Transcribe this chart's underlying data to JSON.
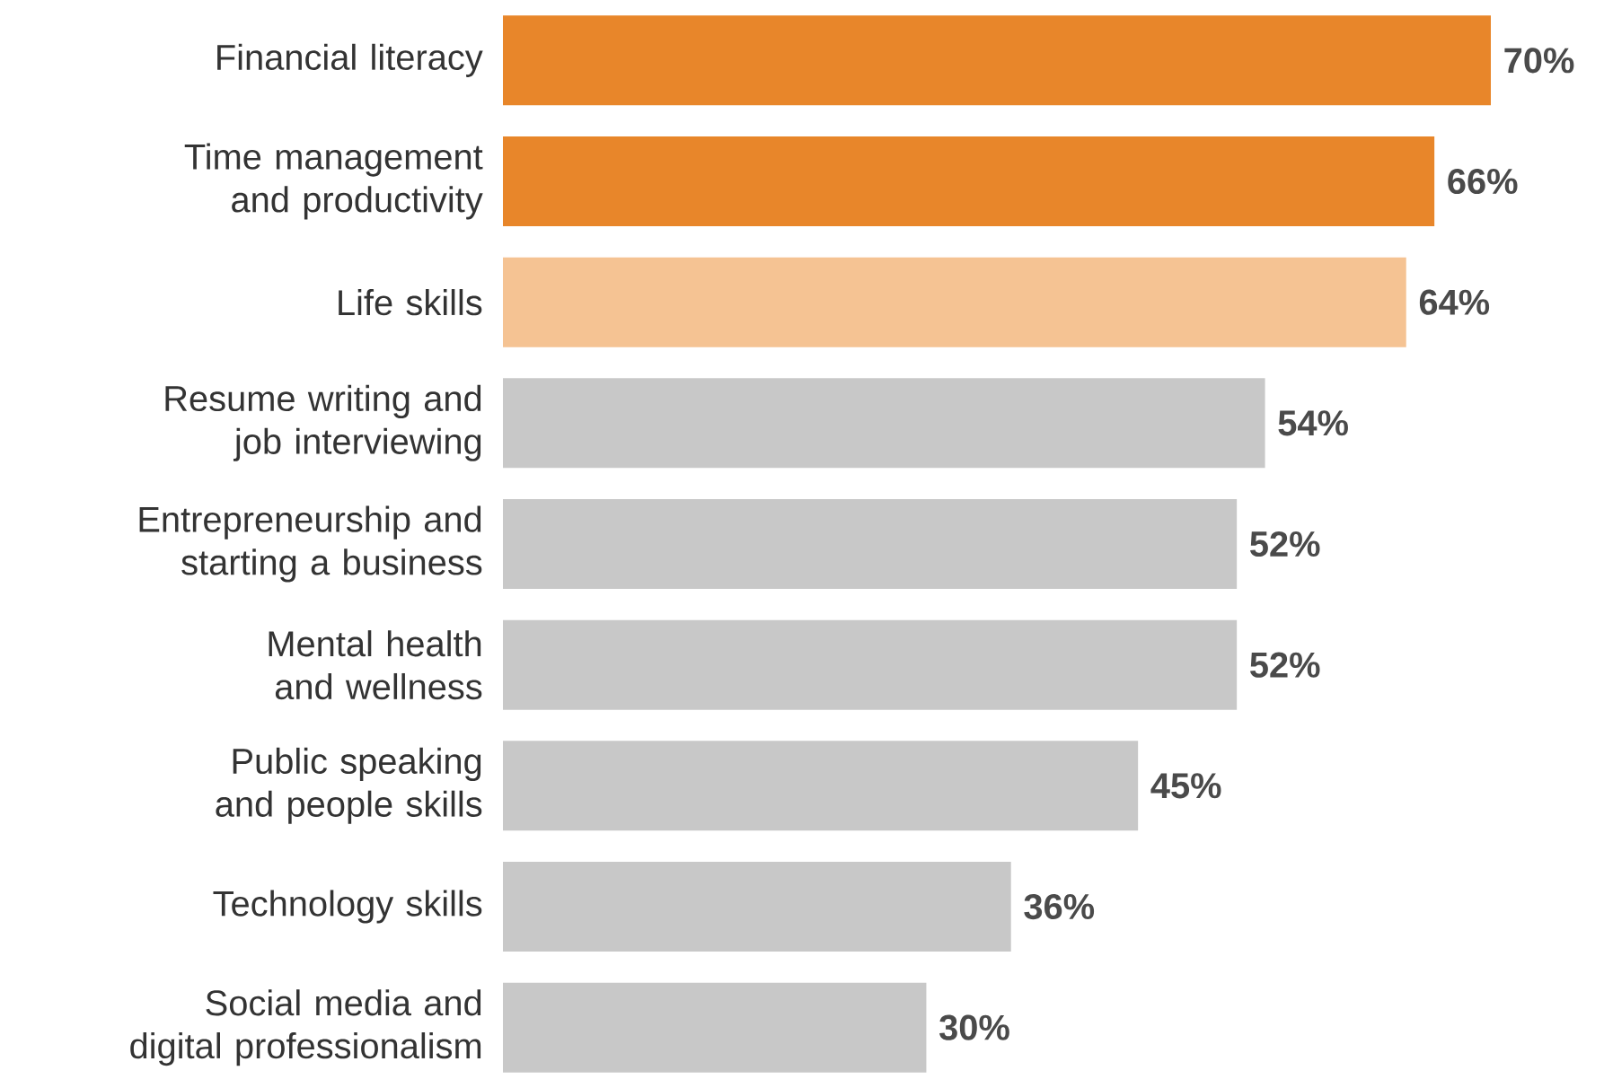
{
  "chart_data": {
    "type": "bar",
    "orientation": "horizontal",
    "categories": [
      "Financial literacy",
      "Time management and productivity",
      "Life skills",
      "Resume writing and job interviewing",
      "Entrepreneurship and starting a business",
      "Mental health and wellness",
      "Public speaking and people skills",
      "Technology skills",
      "Social media and digital professionalism"
    ],
    "values": [
      70,
      66,
      64,
      54,
      52,
      52,
      45,
      36,
      30
    ],
    "value_labels": [
      "70%",
      "66%",
      "64%",
      "54%",
      "52%",
      "52%",
      "45%",
      "36%",
      "30%"
    ],
    "colors": [
      "#e8862a",
      "#e8862a",
      "#f5c393",
      "#c8c8c8",
      "#c8c8c8",
      "#c8c8c8",
      "#c8c8c8",
      "#c8c8c8",
      "#c8c8c8"
    ],
    "tick_labels": "y"
  }
}
